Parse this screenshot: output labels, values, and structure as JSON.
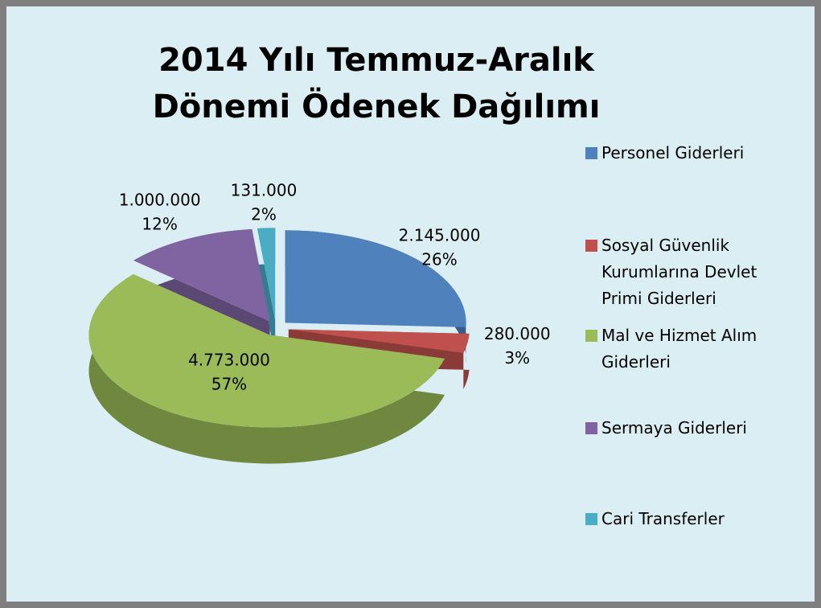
{
  "chart_data": {
    "type": "pie3d",
    "title": "2014 Yılı Temmuz-Aralık Dönemi Ödenek Dağılımı",
    "categories": [
      "Personel Giderleri",
      "Sosyal Güvenlik Kurumlarına Devlet Primi Giderleri",
      "Mal ve Hizmet Alım Giderleri",
      "Sermaya Giderleri",
      "Cari Transferler"
    ],
    "values": [
      2145000,
      280000,
      4773000,
      1000000,
      131000
    ],
    "value_labels": [
      "2.145.000",
      "280.000",
      "4.773.000",
      "1.000.000",
      "131.000"
    ],
    "percent_labels": [
      "26%",
      "3%",
      "57%",
      "12%",
      "2%"
    ],
    "colors": [
      "#4f81bd",
      "#c0504d",
      "#9bbb59",
      "#8064a2",
      "#4bacc6"
    ],
    "legend": "right"
  }
}
